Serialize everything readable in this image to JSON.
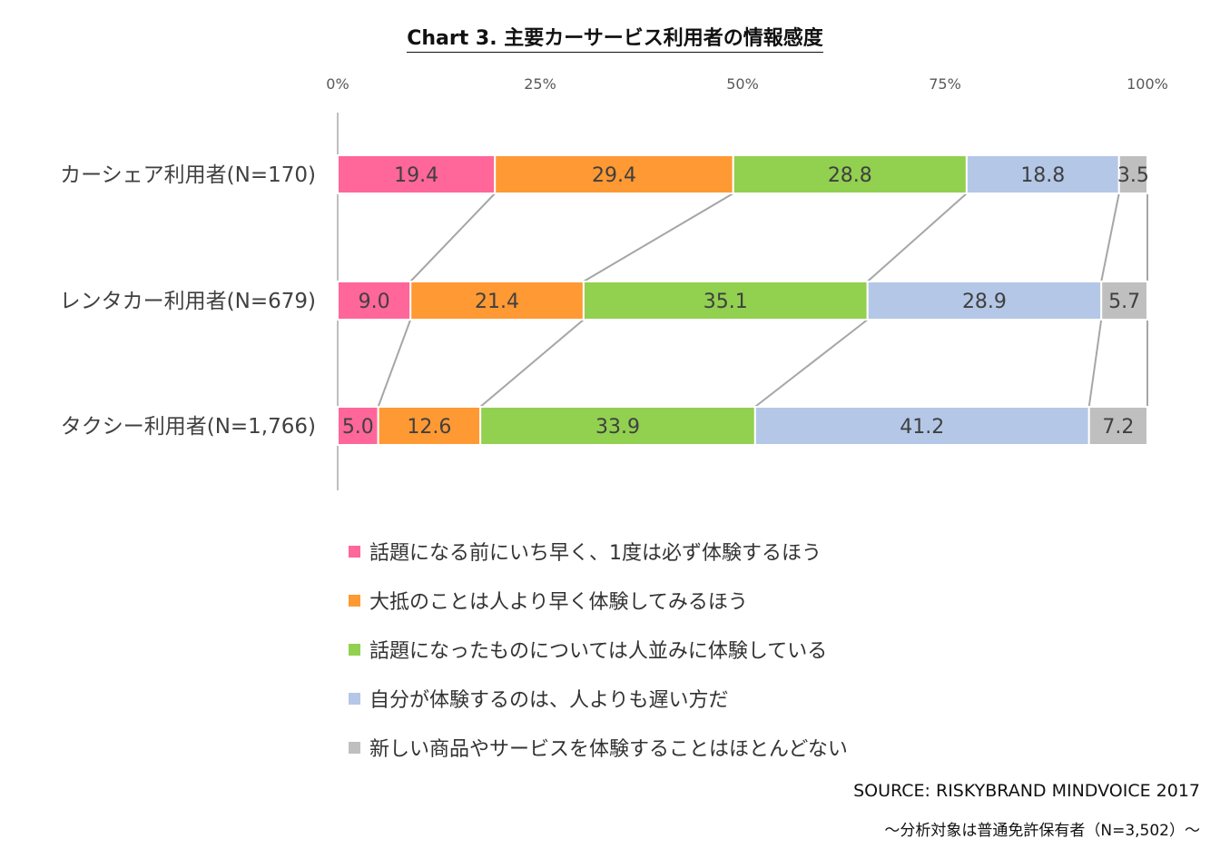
{
  "title": "Chart 3. 主要カーサービス利用者の情報感度",
  "source": "SOURCE: RISKYBRAND MINDVOICE 2017",
  "base_note": "～分析対象は普通免許保有者（N=3,502）～",
  "chart_data": {
    "type": "bar",
    "stacked": true,
    "orientation": "horizontal",
    "title": "Chart 3. 主要カーサービス利用者の情報感度",
    "categories": [
      "カーシェア利用者(N=170)",
      "レンタカー利用者(N=679)",
      "タクシー利用者(N=1,766)"
    ],
    "x_ticks": [
      "0%",
      "25%",
      "50%",
      "75%",
      "100%"
    ],
    "xlim": [
      0,
      100
    ],
    "legend_position": "bottom",
    "series_lines": true,
    "series": [
      {
        "name": "話題になる前にいち早く、1度は必ず体験するほう",
        "color": "#FF6699",
        "values": [
          19.4,
          9.0,
          5.0
        ],
        "labels": [
          "19.4",
          "9.0",
          "5.0"
        ]
      },
      {
        "name": "大抵のことは人より早く体験してみるほう",
        "color": "#FF9933",
        "values": [
          29.4,
          21.4,
          12.6
        ],
        "labels": [
          "29.4",
          "21.4",
          "12.6"
        ]
      },
      {
        "name": "話題になったものについては人並みに体験している",
        "color": "#92D050",
        "values": [
          28.8,
          35.1,
          33.9
        ],
        "labels": [
          "28.8",
          "35.1",
          "33.9"
        ]
      },
      {
        "name": "自分が体験するのは、人よりも遅い方だ",
        "color": "#B4C7E7",
        "values": [
          18.8,
          28.9,
          41.2
        ],
        "labels": [
          "18.8",
          "28.9",
          "41.2"
        ]
      },
      {
        "name": "新しい商品やサービスを体験することはほとんどない",
        "color": "#BFBFBF",
        "values": [
          3.5,
          5.7,
          7.2
        ],
        "labels": [
          "3.5",
          "5.7",
          "7.2"
        ]
      }
    ]
  }
}
